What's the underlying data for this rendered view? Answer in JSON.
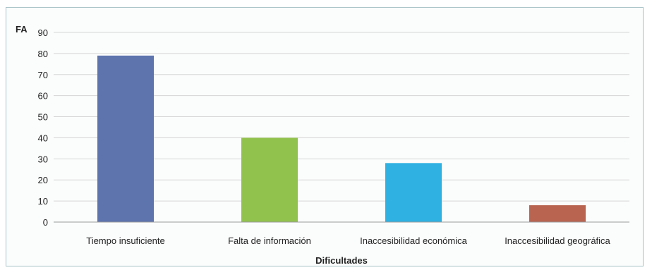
{
  "chart_data": {
    "type": "bar",
    "title": "",
    "ylabel": "FA",
    "xlabel": "Dificultades",
    "ylim": [
      0,
      90
    ],
    "yticks": [
      0,
      10,
      20,
      30,
      40,
      50,
      60,
      70,
      80,
      90
    ],
    "grid": true,
    "categories": [
      "Tiempo insuficiente",
      "Falta de información",
      "Inaccesibilidad económica",
      "Inaccesibilidad geográfica"
    ],
    "values": [
      79,
      40,
      28,
      8
    ],
    "colors": [
      "#5d74ad",
      "#92c24e",
      "#2fb1e2",
      "#b86451"
    ]
  }
}
